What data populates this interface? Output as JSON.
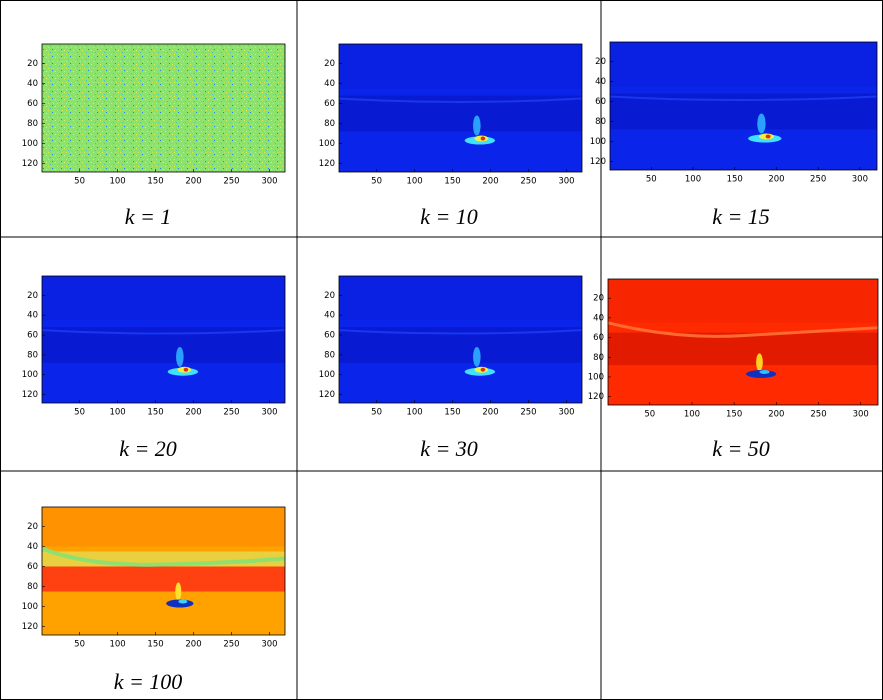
{
  "panels": [
    {
      "caption": "k = 1",
      "xticks": [
        50,
        100,
        150,
        200,
        250,
        300
      ],
      "yticks": [
        20,
        40,
        60,
        80,
        100,
        120
      ]
    },
    {
      "caption": "k = 10",
      "xticks": [
        50,
        100,
        150,
        200,
        250,
        300
      ],
      "yticks": [
        20,
        40,
        60,
        80,
        100,
        120
      ]
    },
    {
      "caption": "k = 15",
      "xticks": [
        50,
        100,
        150,
        200,
        250,
        300
      ],
      "yticks": [
        20,
        40,
        60,
        80,
        100,
        120
      ]
    },
    {
      "caption": "k = 20",
      "xticks": [
        50,
        100,
        150,
        200,
        250,
        300
      ],
      "yticks": [
        20,
        40,
        60,
        80,
        100,
        120
      ]
    },
    {
      "caption": "k = 30",
      "xticks": [
        50,
        100,
        150,
        200,
        250,
        300
      ],
      "yticks": [
        20,
        40,
        60,
        80,
        100,
        120
      ]
    },
    {
      "caption": "k = 50",
      "xticks": [
        50,
        100,
        150,
        200,
        250,
        300
      ],
      "yticks": [
        20,
        40,
        60,
        80,
        100,
        120
      ]
    },
    {
      "caption": "k = 100",
      "xticks": [
        50,
        100,
        150,
        200,
        250,
        300
      ],
      "yticks": [
        20,
        40,
        60,
        80,
        100,
        120
      ]
    }
  ]
}
